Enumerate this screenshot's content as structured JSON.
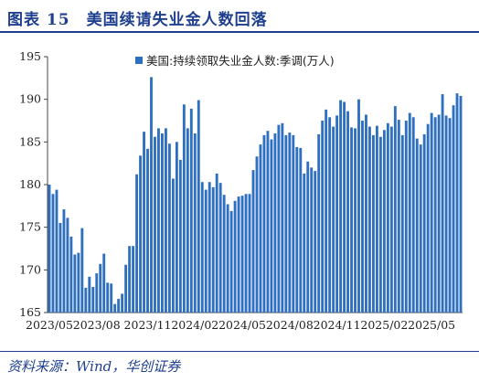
{
  "figure": {
    "title": "图表 15　美国续请失业金人数回落",
    "source": "资料来源：Wind，华创证券"
  },
  "colors": {
    "bar": "#2f6fbf",
    "title": "#1f3f8f",
    "axis": "#444444"
  },
  "chart_data": {
    "type": "bar",
    "title": "",
    "xlabel": "",
    "ylabel": "",
    "ylim": [
      165,
      195
    ],
    "y_ticks": [
      165,
      170,
      175,
      180,
      185,
      190,
      195
    ],
    "x_tick_labels": [
      "2023/05",
      "2023/08",
      "2023/11",
      "2024/02",
      "2024/05",
      "2024/08",
      "2024/11",
      "2025/02",
      "2025/05"
    ],
    "x_tick_indices": [
      0,
      13,
      27,
      40,
      53,
      66,
      79,
      92,
      105
    ],
    "grid": false,
    "legend_position": "top",
    "series": [
      {
        "name": "美国:持续领取失业金人数:季调(万人)",
        "values": [
          180.0,
          178.9,
          179.4,
          175.5,
          177.1,
          176.1,
          173.9,
          171.8,
          172.0,
          174.9,
          167.9,
          169.2,
          168.0,
          169.6,
          170.7,
          171.9,
          168.5,
          168.4,
          166.0,
          166.6,
          167.2,
          170.6,
          172.8,
          172.8,
          181.2,
          183.4,
          186.2,
          184.2,
          192.6,
          185.6,
          186.6,
          186.0,
          186.6,
          184.8,
          180.7,
          185.0,
          182.9,
          189.4,
          186.6,
          188.9,
          186.0,
          189.9,
          180.3,
          179.4,
          180.3,
          179.7,
          181.3,
          180.2,
          178.8,
          177.7,
          176.9,
          178.1,
          178.6,
          178.7,
          178.9,
          178.9,
          181.7,
          183.3,
          184.7,
          185.8,
          186.3,
          185.3,
          186.0,
          187.0,
          187.2,
          185.8,
          186.1,
          185.8,
          184.4,
          184.3,
          181.3,
          182.7,
          182.0,
          181.6,
          185.9,
          187.5,
          188.8,
          187.9,
          186.8,
          188.1,
          189.9,
          189.7,
          188.6,
          186.7,
          186.6,
          190.0,
          187.5,
          188.2,
          186.8,
          185.8,
          186.9,
          185.6,
          186.4,
          187.2,
          186.8,
          189.2,
          187.6,
          185.8,
          187.5,
          188.4,
          187.9,
          185.4,
          184.7,
          185.9,
          187.1,
          188.4,
          187.9,
          188.2,
          190.6,
          188.1,
          187.8,
          189.3,
          190.7,
          190.4
        ]
      }
    ]
  }
}
